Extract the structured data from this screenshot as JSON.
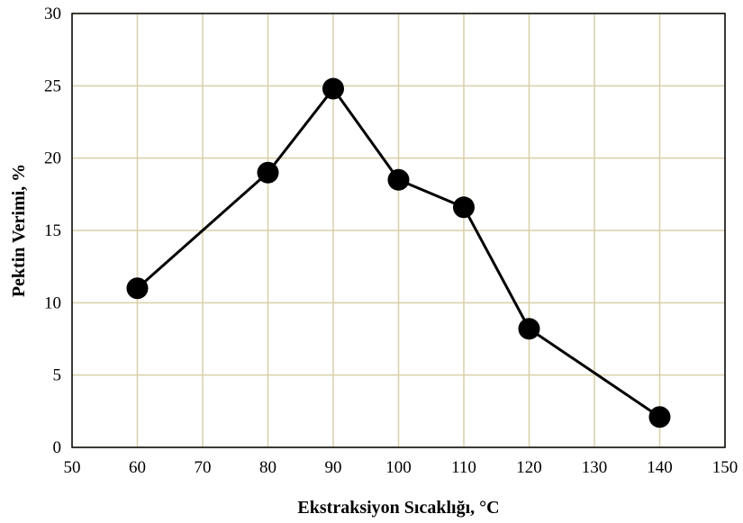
{
  "chart_data": {
    "type": "line",
    "title": "",
    "xlabel": "Ekstraksiyon Sıcaklığı, °C",
    "ylabel": "Pektin Verimi, %",
    "xlim": [
      50,
      150
    ],
    "ylim": [
      0,
      30
    ],
    "xticks": [
      50,
      60,
      70,
      80,
      90,
      100,
      110,
      120,
      130,
      140,
      150
    ],
    "yticks": [
      0,
      5,
      10,
      15,
      20,
      25,
      30
    ],
    "grid": true,
    "legend": "none",
    "series": [
      {
        "x": [
          60,
          80,
          90,
          100,
          110,
          120,
          140
        ],
        "y": [
          11.0,
          19.0,
          24.8,
          18.5,
          16.6,
          8.2,
          2.1
        ]
      }
    ],
    "colors": {
      "line": "#000000",
      "marker": "#000000",
      "grid": "#d9cfa8",
      "frame": "#000000"
    }
  }
}
